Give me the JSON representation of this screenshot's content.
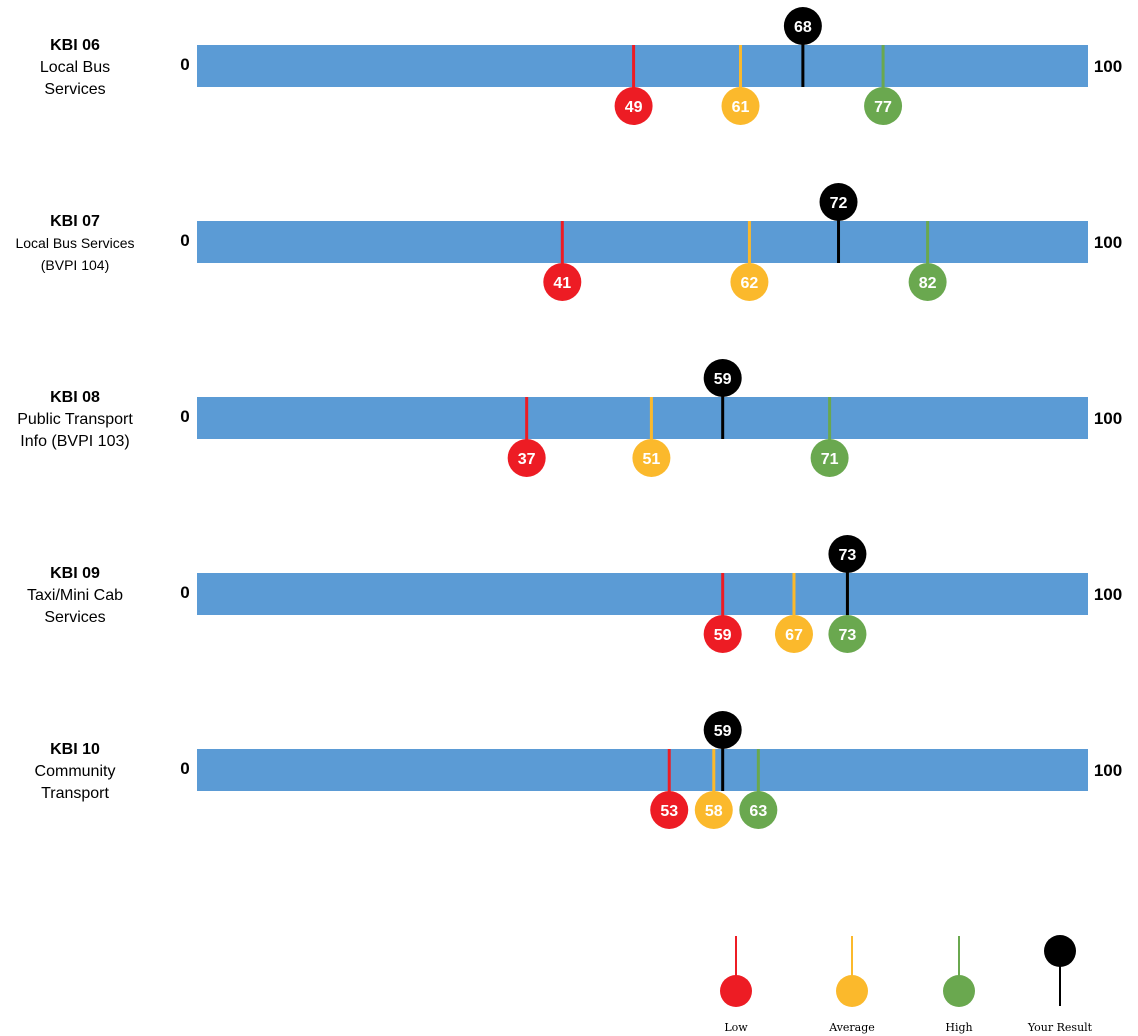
{
  "chart_data": {
    "type": "bar",
    "scale_min_label": "0",
    "scale_max_label": "100",
    "xlim": [
      0,
      100
    ],
    "rows": [
      {
        "code": "KBI 06",
        "name_lines": [
          "Local Bus",
          "Services"
        ],
        "small": false,
        "low": 49,
        "average": 61,
        "high": 77,
        "result": 68
      },
      {
        "code": "KBI 07",
        "name_lines": [
          "Local Bus Services",
          "(BVPI 104)"
        ],
        "small": true,
        "low": 41,
        "average": 62,
        "high": 82,
        "result": 72
      },
      {
        "code": "KBI 08",
        "name_lines": [
          "Public Transport",
          "Info (BVPI 103)"
        ],
        "small": false,
        "low": 37,
        "average": 51,
        "high": 71,
        "result": 59
      },
      {
        "code": "KBI 09",
        "name_lines": [
          "Taxi/Mini Cab",
          "Services"
        ],
        "small": false,
        "low": 59,
        "average": 67,
        "high": 73,
        "result": 73
      },
      {
        "code": "KBI 10",
        "name_lines": [
          "Community",
          "Transport"
        ],
        "small": false,
        "low": 53,
        "average": 58,
        "high": 63,
        "result": 59
      }
    ],
    "legend": [
      {
        "key": "low",
        "label": "Low"
      },
      {
        "key": "average",
        "label": "Average"
      },
      {
        "key": "high",
        "label": "High"
      },
      {
        "key": "result",
        "label": "Your Result"
      }
    ],
    "legend_position": "bottom-right",
    "colors": {
      "bar": "#5b9bd5",
      "low": "#ed1c24",
      "average": "#fbb92c",
      "high": "#6aa84f",
      "result": "#000000"
    }
  }
}
